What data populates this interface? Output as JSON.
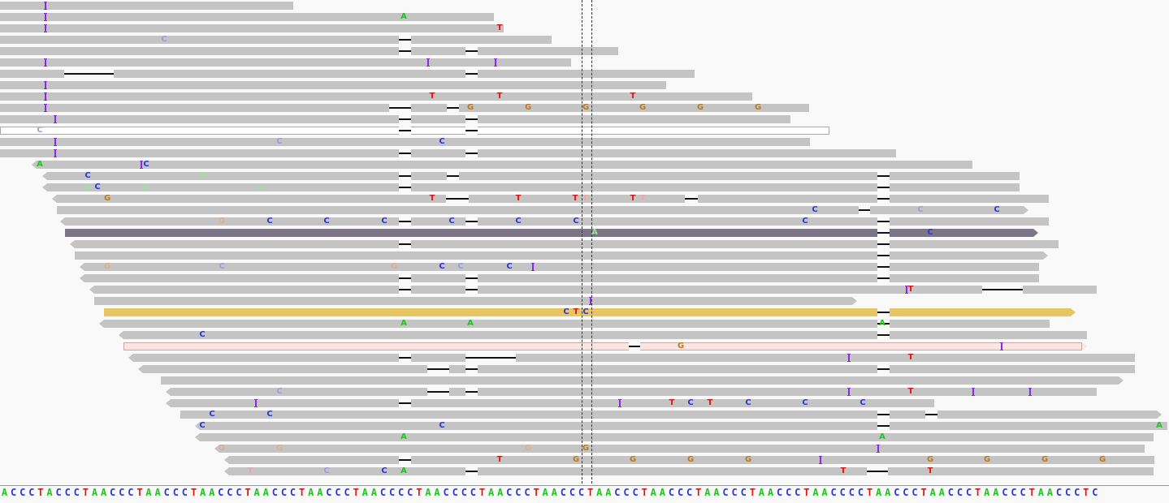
{
  "colors": {
    "A": "#22c322",
    "C": "#2a36d8",
    "G": "#c07818",
    "T": "#d81818",
    "faint_C": "#9c9ce0",
    "faint_G": "#d8b28c",
    "faint_T": "#e8a8a8",
    "faint_A": "#a0e0a0",
    "insertion": "#8a2be2"
  },
  "reference": {
    "sequence": "ACCCTACCCTAACCCTAACCCTAACCCTAACCCTAACCCTAACCCCTAACCCCTAACCCTAACCCTAACCCTAACCCTAACCCTAACCCTAACCCCTAACCCTAACCCTAACCCTAACCCTC"
  },
  "view": {
    "center_position_marker": "dashed-lines"
  }
}
